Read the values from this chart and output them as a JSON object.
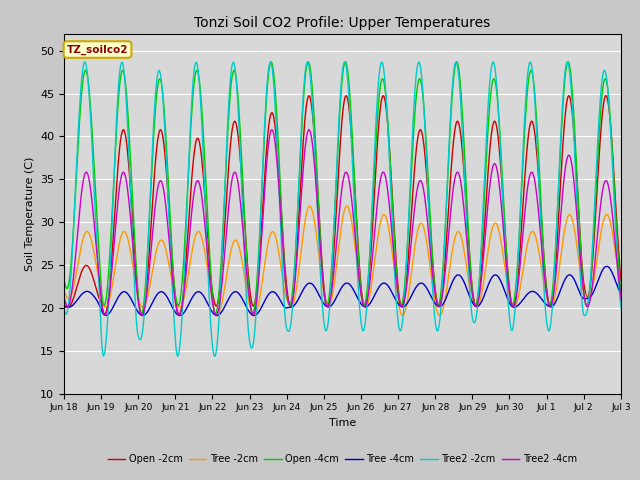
{
  "title": "Tonzi Soil CO2 Profile: Upper Temperatures",
  "xlabel": "Time",
  "ylabel": "Soil Temperature (C)",
  "ylim": [
    10,
    52
  ],
  "yticks": [
    10,
    15,
    20,
    25,
    30,
    35,
    40,
    45,
    50
  ],
  "legend_label": "TZ_soilco2",
  "series_labels": [
    "Open -2cm",
    "Tree -2cm",
    "Open -4cm",
    "Tree -4cm",
    "Tree2 -2cm",
    "Tree2 -4cm"
  ],
  "series_colors": [
    "#cc0000",
    "#ff9900",
    "#00cc00",
    "#0000cc",
    "#00cccc",
    "#cc00cc"
  ],
  "background_color": "#d8d8d8",
  "n_days": 16,
  "samples_per_day": 48,
  "x_tick_labels": [
    "Jun 18",
    "Jun 19",
    "Jun 20",
    "Jun 21",
    "Jun 22",
    "Jun 23",
    "Jun 24",
    "Jun 25",
    "Jun 26",
    "Jun 27",
    "Jun 28",
    "Jun 29",
    "Jun 30",
    "Jul 1",
    "Jul 2",
    "Jul 3"
  ]
}
